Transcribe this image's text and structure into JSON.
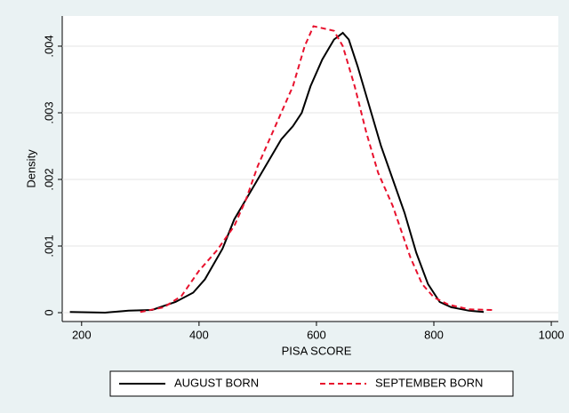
{
  "chart_data": {
    "type": "line",
    "x_label": "PISA SCORE",
    "y_label": "Density",
    "xlim": [
      167,
      1012
    ],
    "xticks": [
      200,
      400,
      600,
      800,
      1000
    ],
    "ylim": [
      -0.000133,
      0.004453
    ],
    "yticks": [
      {
        "value": 0,
        "label": "0"
      },
      {
        "value": 0.001,
        "label": ".001"
      },
      {
        "value": 0.002,
        "label": ".002"
      },
      {
        "value": 0.003,
        "label": ".003"
      },
      {
        "value": 0.004,
        "label": ".004"
      }
    ],
    "grid": true,
    "legend": "bottom",
    "series": [
      {
        "name": "AUGUST BORN",
        "color": "#000000",
        "dash": "solid",
        "x": [
          180,
          240,
          280,
          320,
          360,
          390,
          410,
          440,
          460,
          480,
          500,
          520,
          540,
          560,
          575,
          590,
          610,
          630,
          645,
          655,
          670,
          690,
          710,
          730,
          750,
          770,
          790,
          810,
          830,
          860,
          885
        ],
        "values": [
          1e-05,
          0,
          3e-05,
          4e-05,
          0.00016,
          0.0003,
          0.0005,
          0.00096,
          0.0014,
          0.0017,
          0.002,
          0.0023,
          0.0026,
          0.0028,
          0.003,
          0.0034,
          0.0038,
          0.0041,
          0.0042,
          0.0041,
          0.0037,
          0.0031,
          0.0025,
          0.002,
          0.0015,
          0.0009,
          0.00043,
          0.00016,
          8e-05,
          3e-05,
          1e-05
        ]
      },
      {
        "name": "SEPTEMBER BORN",
        "color": "#e8112d",
        "dash": "dashed",
        "x": [
          300,
          340,
          370,
          400,
          430,
          460,
          480,
          500,
          520,
          540,
          560,
          580,
          595,
          610,
          630,
          645,
          665,
          685,
          705,
          730,
          760,
          780,
          800,
          825,
          860,
          900
        ],
        "values": [
          1e-05,
          8e-05,
          0.00025,
          0.00063,
          0.00093,
          0.0013,
          0.0017,
          0.0022,
          0.0026,
          0.003,
          0.0034,
          0.004,
          0.0043,
          0.00427,
          0.00423,
          0.004,
          0.0034,
          0.0027,
          0.0021,
          0.0016,
          0.00083,
          0.00043,
          0.00023,
          0.00012,
          5e-05,
          4e-05
        ]
      }
    ]
  }
}
